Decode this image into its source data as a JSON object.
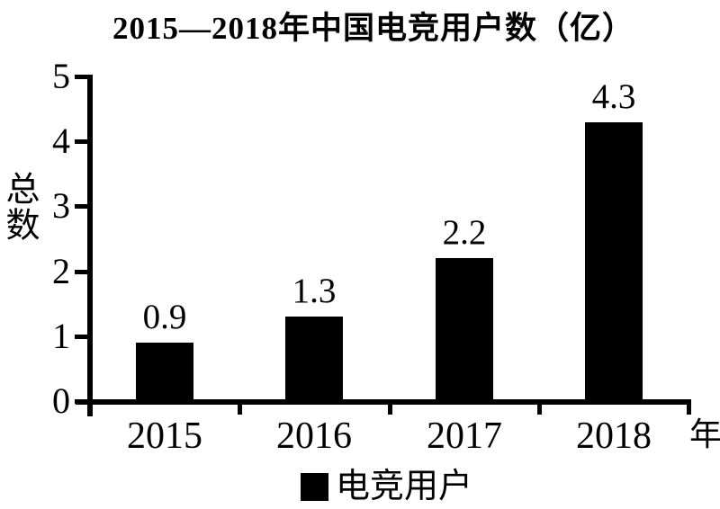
{
  "chart_data": {
    "type": "bar",
    "title": "2015—2018年中国电竞用户数（亿）",
    "categories": [
      "2015",
      "2016",
      "2017",
      "2018"
    ],
    "values": [
      0.9,
      1.3,
      2.2,
      4.3
    ],
    "data_labels": [
      "0.9",
      "1.3",
      "2.2",
      "4.3"
    ],
    "series_name": "电竞用户",
    "xlabel": "年",
    "ylabel": "总数",
    "ylim": [
      0,
      5
    ],
    "yticks": [
      0,
      1,
      2,
      3,
      4,
      5
    ],
    "grid": false,
    "legend_position": "bottom",
    "bar_color": "#000000"
  },
  "colors": {
    "bar": "#000000",
    "axis": "#000000",
    "text": "#000000",
    "background": "#ffffff"
  }
}
